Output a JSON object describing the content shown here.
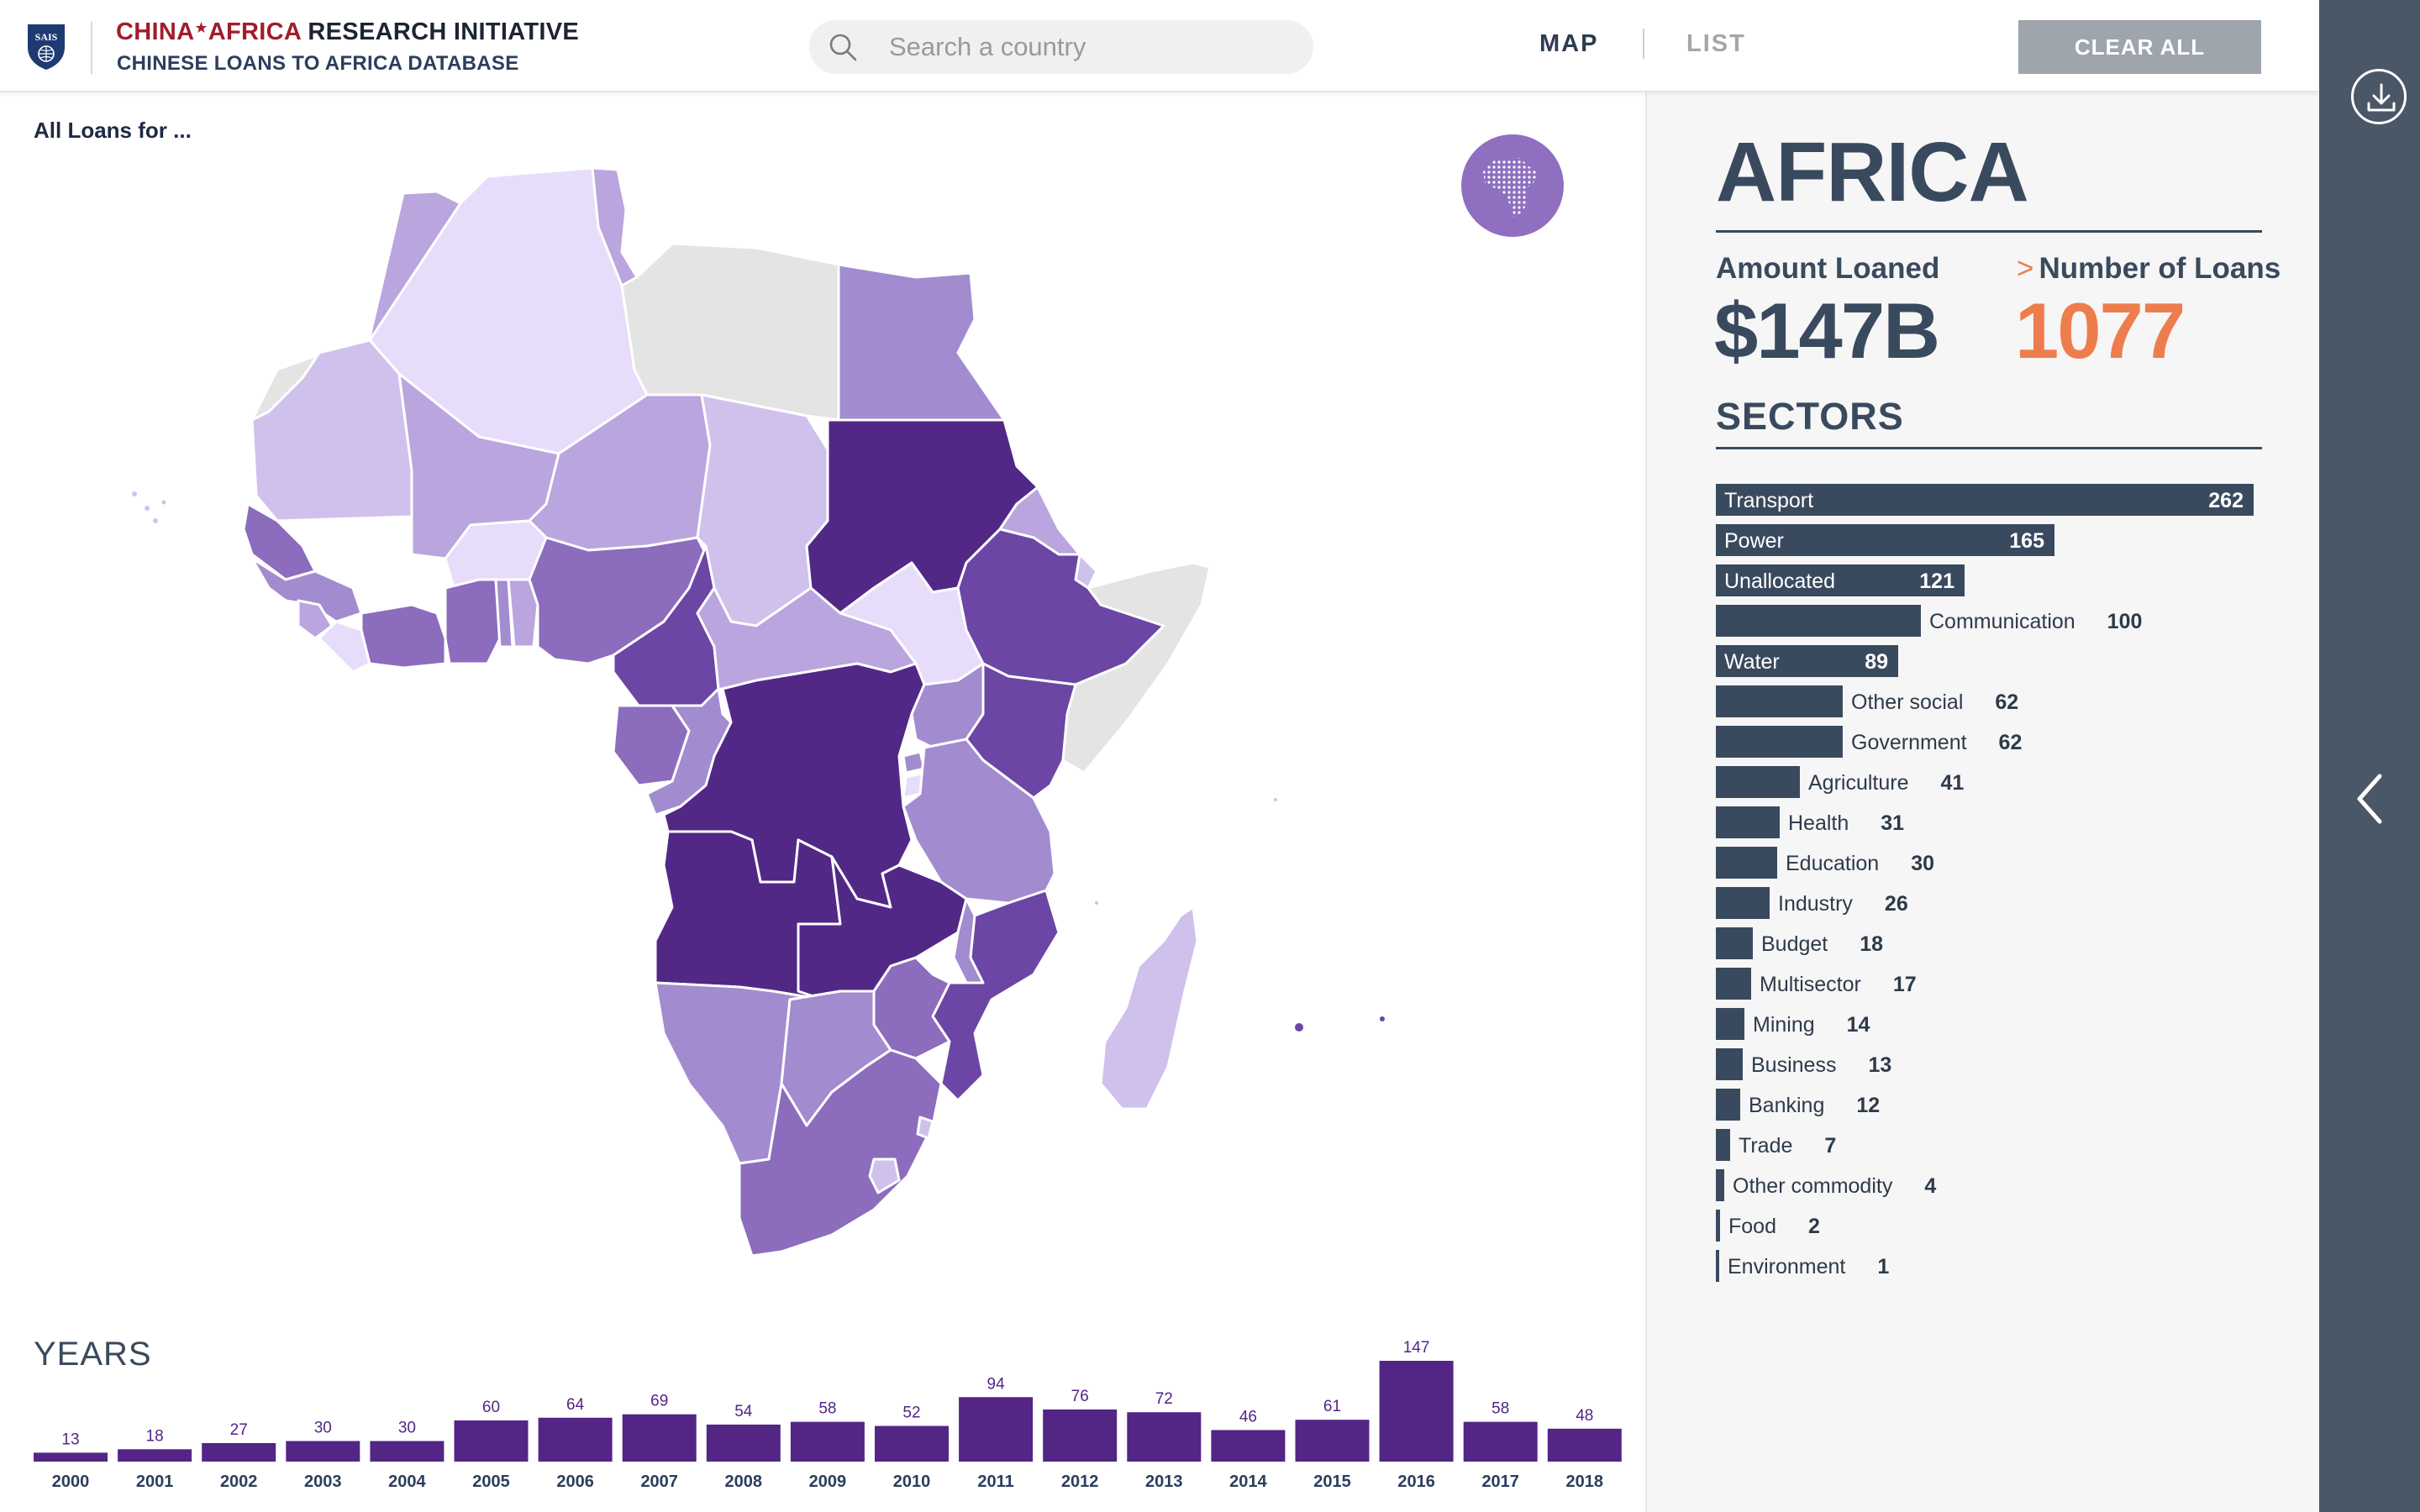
{
  "header": {
    "brand_part1": "CHINA",
    "brand_star": "★",
    "brand_part2": "AFRICA",
    "brand_part3": " RESEARCH INITIATIVE",
    "subtitle": "CHINESE LOANS TO AFRICA DATABASE",
    "logo_text": "SAIS"
  },
  "search": {
    "placeholder": "Search a country",
    "value": ""
  },
  "nav": {
    "map_label": "MAP",
    "list_label": "LIST",
    "active": "MAP"
  },
  "clear_all_label": "CLEAR ALL",
  "map": {
    "heading": "All Loans for ...",
    "colors": {
      "c1": "#e7ddfb",
      "c2": "#cfc1ec",
      "c3": "#baa5de",
      "c4": "#a38bcf",
      "c5": "#8c6cbd",
      "c6": "#6b46a5",
      "c7": "#522887",
      "nodata": "#e4e4e4"
    }
  },
  "summary": {
    "region": "AFRICA",
    "amount_label": "Amount Loaned",
    "amount_value": "$147B",
    "number_label": "Number of Loans",
    "number_value": "1077",
    "sectors_title": "SECTORS"
  },
  "sectors": [
    {
      "name": "Transport",
      "value": 262
    },
    {
      "name": "Power",
      "value": 165
    },
    {
      "name": "Unallocated",
      "value": 121
    },
    {
      "name": "Communication",
      "value": 100
    },
    {
      "name": "Water",
      "value": 89
    },
    {
      "name": "Other social",
      "value": 62
    },
    {
      "name": "Government",
      "value": 62
    },
    {
      "name": "Agriculture",
      "value": 41
    },
    {
      "name": "Health",
      "value": 31
    },
    {
      "name": "Education",
      "value": 30
    },
    {
      "name": "Industry",
      "value": 26
    },
    {
      "name": "Budget",
      "value": 18
    },
    {
      "name": "Multisector",
      "value": 17
    },
    {
      "name": "Mining",
      "value": 14
    },
    {
      "name": "Business",
      "value": 13
    },
    {
      "name": "Banking",
      "value": 12
    },
    {
      "name": "Trade",
      "value": 7
    },
    {
      "name": "Other commodity",
      "value": 4
    },
    {
      "name": "Food",
      "value": 2
    },
    {
      "name": "Environment",
      "value": 1
    }
  ],
  "years_title": "YEARS",
  "chart_data": {
    "type": "bar",
    "title": "YEARS",
    "categories": [
      "2000",
      "2001",
      "2002",
      "2003",
      "2004",
      "2005",
      "2006",
      "2007",
      "2008",
      "2009",
      "2010",
      "2011",
      "2012",
      "2013",
      "2014",
      "2015",
      "2016",
      "2017",
      "2018"
    ],
    "values": [
      13,
      18,
      27,
      30,
      30,
      60,
      64,
      69,
      54,
      58,
      52,
      94,
      76,
      72,
      46,
      61,
      147,
      58,
      48
    ],
    "color": "#532585",
    "xlabel": "",
    "ylabel": "",
    "grid": false
  }
}
